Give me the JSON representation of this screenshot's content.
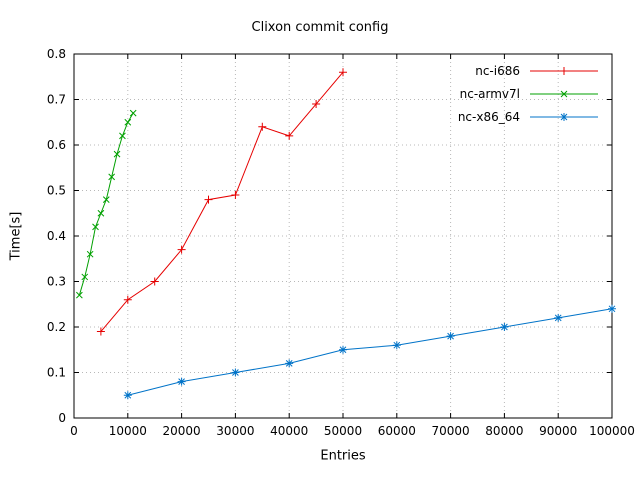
{
  "chart_data": {
    "type": "line",
    "title": "Clixon commit config",
    "xlabel": "Entries",
    "ylabel": "Time[s]",
    "xlim": [
      0,
      100000
    ],
    "ylim": [
      0,
      0.8
    ],
    "grid": true,
    "legend_position": "top-right",
    "x_ticks": [
      0,
      10000,
      20000,
      30000,
      40000,
      50000,
      60000,
      70000,
      80000,
      90000,
      100000
    ],
    "x_tick_labels": [
      "0",
      "10000",
      "20000",
      "30000",
      "40000",
      "50000",
      "60000",
      "70000",
      "80000",
      "90000",
      "100000"
    ],
    "y_ticks": [
      0,
      0.1,
      0.2,
      0.3,
      0.4,
      0.5,
      0.6,
      0.7,
      0.8
    ],
    "y_tick_labels": [
      "0",
      "0.1",
      "0.2",
      "0.3",
      "0.4",
      "0.5",
      "0.6",
      "0.7",
      "0.8"
    ],
    "series": [
      {
        "name": "nc-i686",
        "color": "#e60000",
        "marker": "plus",
        "x": [
          5000,
          10000,
          15000,
          20000,
          25000,
          30000,
          35000,
          40000,
          45000,
          50000
        ],
        "y": [
          0.19,
          0.26,
          0.3,
          0.37,
          0.48,
          0.49,
          0.64,
          0.62,
          0.69,
          0.76
        ]
      },
      {
        "name": "nc-armv7l",
        "color": "#00a000",
        "marker": "cross",
        "x": [
          1000,
          2000,
          3000,
          4000,
          5000,
          6000,
          7000,
          8000,
          9000,
          10000,
          11000
        ],
        "y": [
          0.27,
          0.31,
          0.36,
          0.42,
          0.45,
          0.48,
          0.53,
          0.58,
          0.62,
          0.65,
          0.67
        ]
      },
      {
        "name": "nc-x86_64",
        "color": "#0073c8",
        "marker": "asterisk",
        "x": [
          10000,
          20000,
          30000,
          40000,
          50000,
          60000,
          70000,
          80000,
          90000,
          100000
        ],
        "y": [
          0.05,
          0.08,
          0.1,
          0.12,
          0.15,
          0.16,
          0.18,
          0.2,
          0.22,
          0.24
        ]
      }
    ]
  }
}
